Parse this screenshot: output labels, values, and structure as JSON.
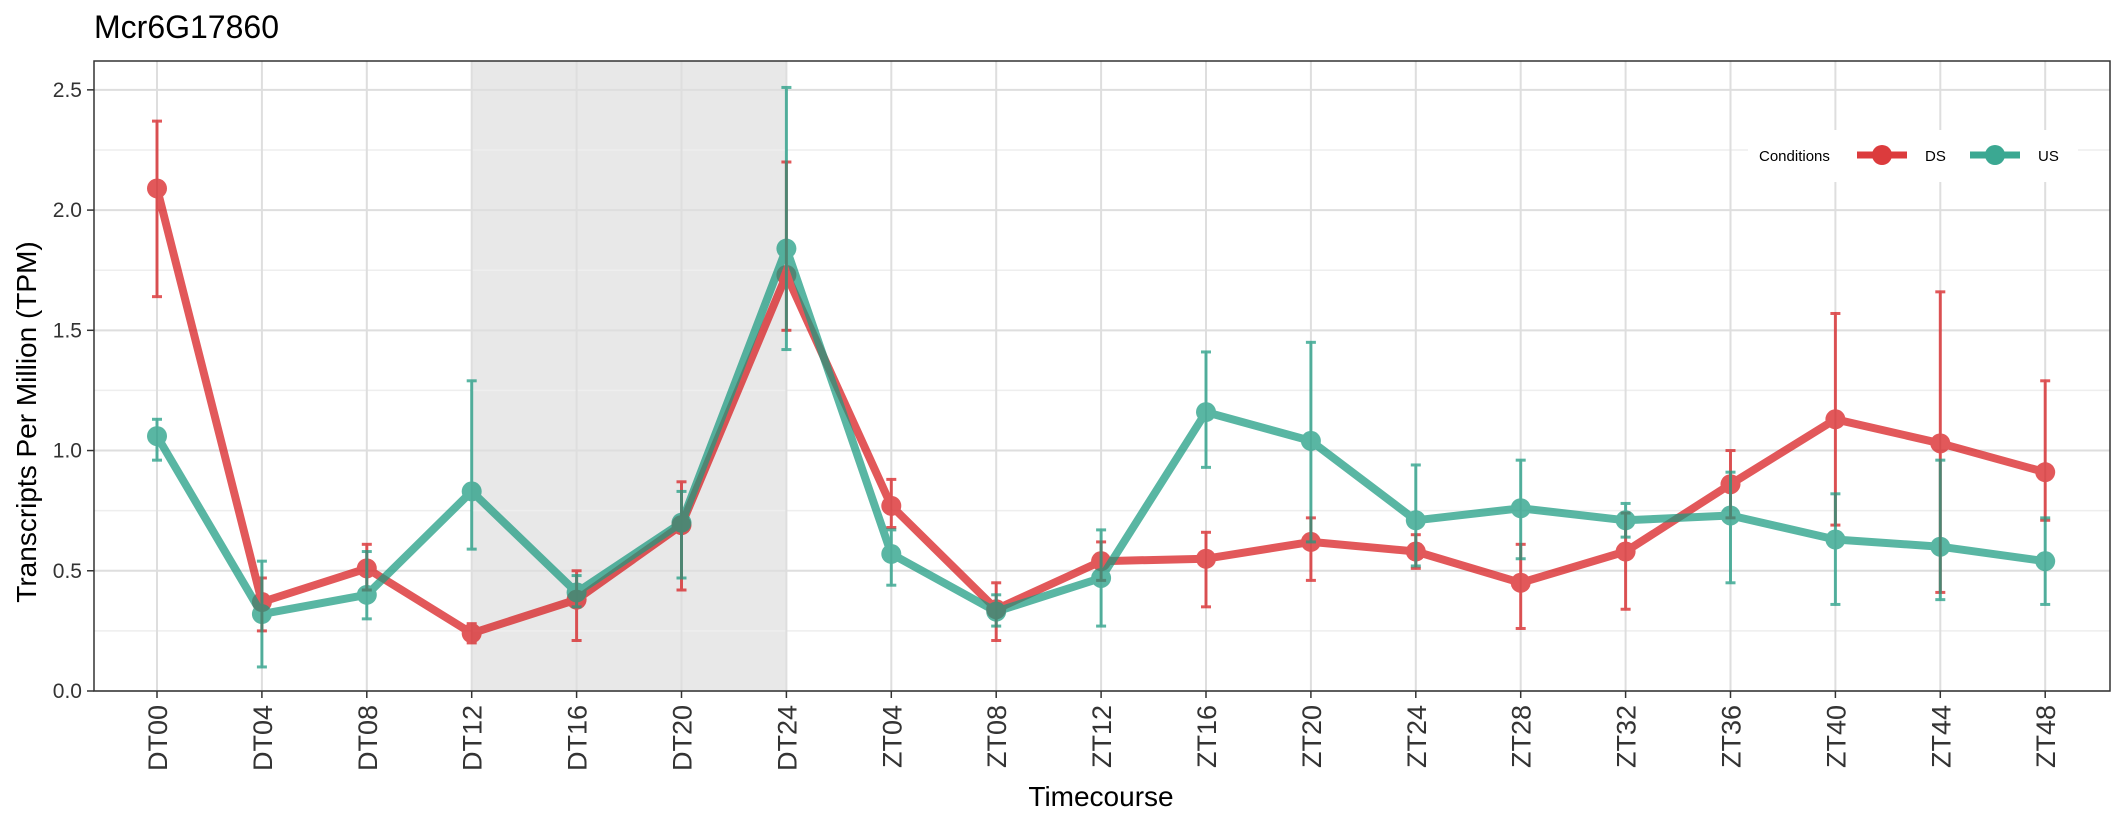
{
  "colors": {
    "DS": "#d7191c",
    "US": "#1a9a80",
    "shade": "#e8e8e8",
    "grid_major": "#dedede",
    "grid_minor": "#eeeeee",
    "panel_border": "#333333"
  },
  "chart_data": {
    "type": "line",
    "title": "Mcr6G17860",
    "xlabel": "Timecourse",
    "ylabel": "Transcripts Per Million (TPM)",
    "ylim": [
      0,
      2.62
    ],
    "yticks": [
      0.0,
      0.5,
      1.0,
      1.5,
      2.0,
      2.5
    ],
    "ytick_labels": [
      "0.0",
      "0.5",
      "1.0",
      "1.5",
      "2.0",
      "2.5"
    ],
    "grid": true,
    "legend": {
      "title": "Conditions",
      "placement": "top-right"
    },
    "shaded_region": [
      "DT12",
      "DT24"
    ],
    "categories": [
      "DT00",
      "DT04",
      "DT08",
      "DT12",
      "DT16",
      "DT20",
      "DT24",
      "ZT04",
      "ZT08",
      "ZT12",
      "ZT16",
      "ZT20",
      "ZT24",
      "ZT28",
      "ZT32",
      "ZT36",
      "ZT40",
      "ZT44",
      "ZT48"
    ],
    "series": [
      {
        "name": "DS",
        "values": [
          2.09,
          0.37,
          0.51,
          0.24,
          0.38,
          0.69,
          1.73,
          0.77,
          0.34,
          0.54,
          0.55,
          0.62,
          0.58,
          0.45,
          0.58,
          0.86,
          1.13,
          1.03,
          0.91
        ],
        "err_low": [
          1.64,
          0.25,
          0.42,
          0.2,
          0.21,
          0.42,
          1.5,
          0.68,
          0.21,
          0.46,
          0.35,
          0.46,
          0.51,
          0.26,
          0.34,
          0.72,
          0.69,
          0.41,
          0.71
        ],
        "err_high": [
          2.37,
          0.47,
          0.61,
          0.28,
          0.5,
          0.87,
          2.2,
          0.88,
          0.45,
          0.62,
          0.66,
          0.72,
          0.65,
          0.61,
          0.74,
          1.0,
          1.57,
          1.66,
          1.29
        ]
      },
      {
        "name": "US",
        "values": [
          1.06,
          0.32,
          0.4,
          0.83,
          0.41,
          0.7,
          1.84,
          0.57,
          0.33,
          0.47,
          1.16,
          1.04,
          0.71,
          0.76,
          0.71,
          0.73,
          0.63,
          0.6,
          0.54
        ],
        "err_low": [
          0.96,
          0.1,
          0.3,
          0.59,
          0.35,
          0.47,
          1.42,
          0.44,
          0.27,
          0.27,
          0.93,
          0.62,
          0.52,
          0.55,
          0.64,
          0.45,
          0.36,
          0.38,
          0.36
        ],
        "err_high": [
          1.13,
          0.54,
          0.58,
          1.29,
          0.48,
          0.83,
          2.51,
          0.67,
          0.4,
          0.67,
          1.41,
          1.45,
          0.94,
          0.96,
          0.78,
          0.91,
          0.82,
          0.96,
          0.72
        ]
      }
    ]
  }
}
